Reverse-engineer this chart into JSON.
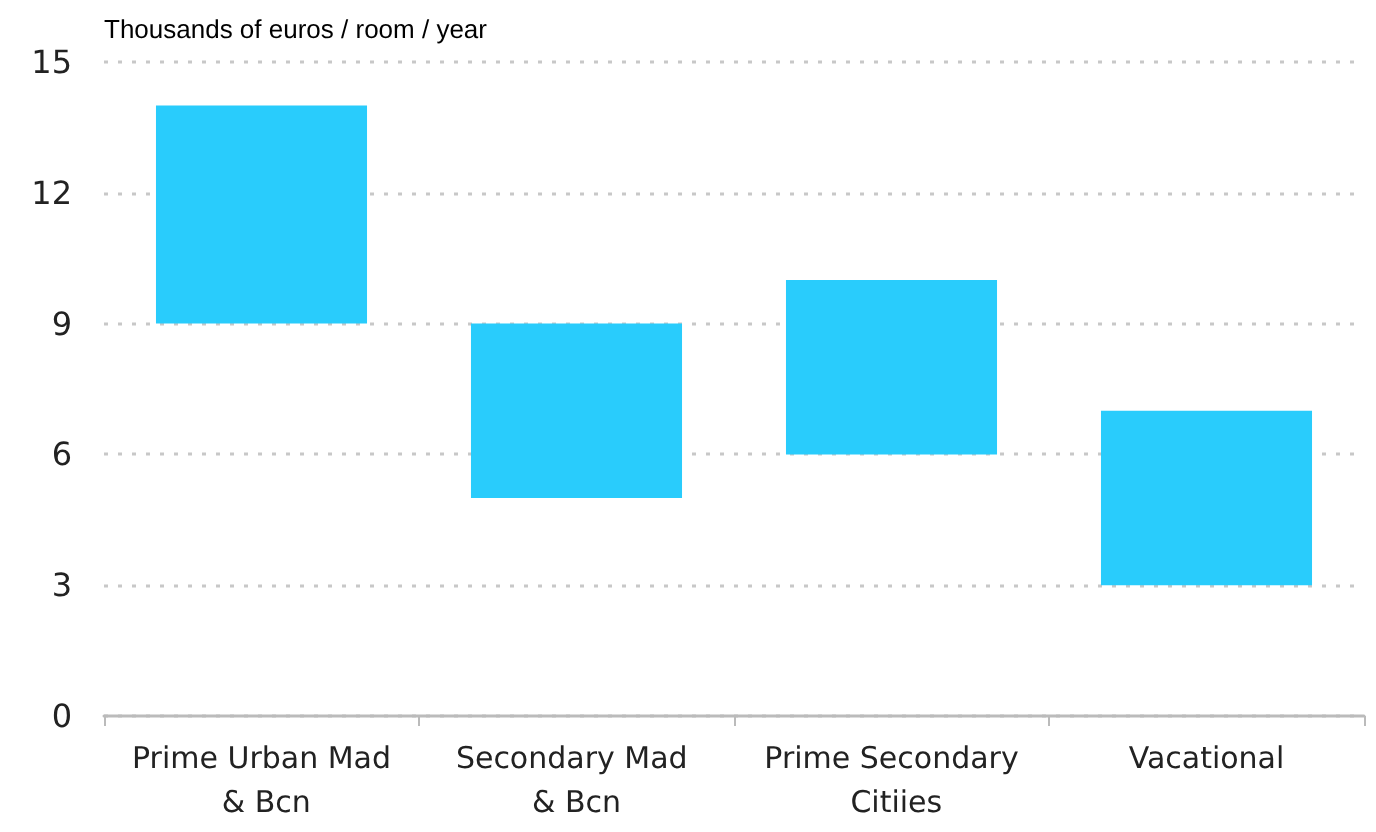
{
  "chart_data": {
    "type": "bar",
    "ylabel": "Thousands of euros / room / year",
    "categories": [
      "Prime Urban Mad & Bcn",
      "Secondary Mad & Bcn",
      "Prime Secondary Citiies",
      "Vacational"
    ],
    "base": [
      9,
      5,
      6,
      3
    ],
    "values": [
      5,
      4,
      4,
      4
    ],
    "color": "#29ccfc",
    "ylim": [
      0,
      15
    ],
    "yticks": [
      0,
      3,
      6,
      9,
      12,
      15
    ],
    "grid": "y"
  }
}
